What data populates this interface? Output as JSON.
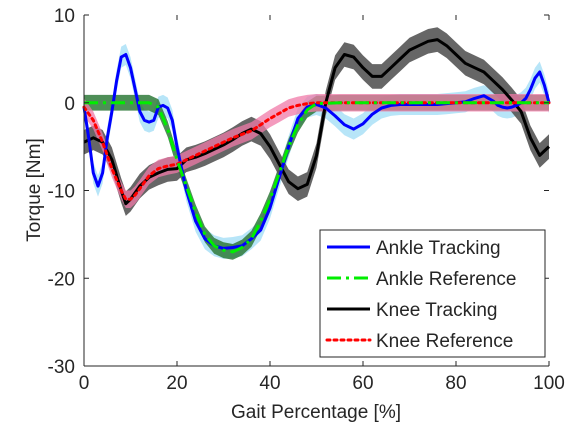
{
  "chart_data": {
    "type": "line",
    "xlabel": "Gait Percentage [%]",
    "ylabel": "Torque [Nm]",
    "xlim": [
      0,
      100
    ],
    "ylim": [
      -30,
      10
    ],
    "x_ticks": [
      "0",
      "20",
      "40",
      "60",
      "80",
      "100"
    ],
    "y_ticks": [
      "10",
      "0",
      "-10",
      "-20",
      "-30"
    ],
    "legend_position": "bottom-right",
    "series": [
      {
        "name": "Ankle Tracking",
        "color": "#0000ff",
        "style": "solid",
        "band_color": "#9fdcf5",
        "x": [
          0,
          1,
          2,
          3,
          4,
          5,
          6,
          7,
          8,
          9,
          10,
          11,
          12,
          13,
          14,
          15,
          16,
          17,
          18,
          19,
          20,
          21,
          22,
          24,
          26,
          28,
          30,
          32,
          34,
          36,
          38,
          40,
          42,
          44,
          46,
          48,
          50,
          52,
          54,
          56,
          58,
          60,
          62,
          64,
          66,
          68,
          70,
          72,
          74,
          76,
          78,
          80,
          82,
          84,
          86,
          87,
          88,
          89,
          90,
          91,
          92,
          93,
          94,
          95,
          96,
          97,
          98,
          99,
          100
        ],
        "y": [
          -0.5,
          -4,
          -8,
          -9.5,
          -8,
          -4,
          -1,
          2.5,
          5.2,
          5.5,
          4,
          1.5,
          -1,
          -2,
          -2.2,
          -2,
          -0.5,
          -0.3,
          -0.6,
          -2,
          -5,
          -7.5,
          -10,
          -13.5,
          -15.5,
          -16.3,
          -16.6,
          -16.5,
          -16.3,
          -15.5,
          -14.5,
          -12,
          -8.5,
          -5,
          -1.8,
          -0.5,
          -0.2,
          -0.6,
          -1.5,
          -2.5,
          -3,
          -2.4,
          -1.3,
          -0.6,
          -0.3,
          -0.2,
          -0.2,
          -0.2,
          -0.2,
          -0.2,
          -0.1,
          0,
          0.1,
          0.5,
          0.8,
          0.5,
          0.2,
          -0.3,
          -0.5,
          -0.6,
          -0.5,
          -0.3,
          0,
          0.5,
          1.5,
          2.8,
          3.5,
          2,
          0
        ]
      },
      {
        "name": "Ankle Reference",
        "color": "#00ee00",
        "style": "dashdot",
        "band_color": "#2f7a3a",
        "x": [
          0,
          5,
          10,
          14,
          16,
          18,
          20,
          22,
          24,
          26,
          28,
          30,
          32,
          34,
          36,
          38,
          40,
          42,
          44,
          46,
          48,
          50,
          55,
          60,
          70,
          80,
          90,
          100
        ],
        "y": [
          0,
          0,
          0,
          0,
          -0.5,
          -3,
          -6.5,
          -9.5,
          -12.5,
          -15,
          -16.3,
          -16.8,
          -17,
          -16.5,
          -15.5,
          -13.5,
          -11,
          -8,
          -5,
          -2.5,
          -0.8,
          -0.1,
          0,
          0,
          0,
          0,
          0,
          0
        ]
      },
      {
        "name": "Knee Tracking",
        "color": "#000000",
        "style": "solid",
        "band_color": "#555555",
        "x": [
          0,
          2,
          4,
          6,
          8,
          9,
          10,
          12,
          14,
          16,
          18,
          20,
          22,
          24,
          26,
          28,
          30,
          32,
          34,
          36,
          38,
          40,
          42,
          44,
          46,
          48,
          50,
          52,
          54,
          56,
          58,
          60,
          62,
          64,
          66,
          68,
          70,
          72,
          74,
          76,
          78,
          80,
          82,
          84,
          86,
          88,
          90,
          92,
          94,
          96,
          98,
          100
        ],
        "y": [
          -4.5,
          -4,
          -4.5,
          -6.5,
          -10,
          -11.5,
          -11,
          -9.5,
          -8.5,
          -8,
          -7.6,
          -7.5,
          -6.5,
          -6.2,
          -5.8,
          -5.3,
          -4.8,
          -4.2,
          -3.5,
          -3,
          -3.5,
          -5,
          -7,
          -9,
          -9.8,
          -9.3,
          -6,
          0,
          4,
          5.5,
          5.2,
          4,
          3,
          3,
          4,
          5,
          6,
          6.5,
          7,
          7.2,
          6.5,
          5.5,
          4.5,
          4,
          3.5,
          2.5,
          1.5,
          0.3,
          -1,
          -4,
          -6,
          -5
        ]
      },
      {
        "name": "Knee Reference",
        "color": "#ff0000",
        "style": "dotted",
        "band_color": "#f07aa8",
        "x": [
          0,
          2,
          4,
          6,
          8,
          9,
          10,
          11,
          12,
          14,
          16,
          18,
          20,
          22,
          24,
          26,
          28,
          30,
          32,
          34,
          36,
          38,
          40,
          42,
          44,
          46,
          48,
          50,
          55,
          60,
          70,
          80,
          90,
          100
        ],
        "y": [
          -0.5,
          -2,
          -4.5,
          -7.5,
          -10,
          -11,
          -11,
          -10.5,
          -9.8,
          -8.3,
          -7.5,
          -7.2,
          -7,
          -6.5,
          -6,
          -5.5,
          -5,
          -4.5,
          -4,
          -3.6,
          -3.2,
          -2.5,
          -1.8,
          -1.2,
          -0.6,
          -0.3,
          -0.1,
          0,
          0,
          0,
          0,
          0,
          0,
          0
        ]
      }
    ]
  }
}
